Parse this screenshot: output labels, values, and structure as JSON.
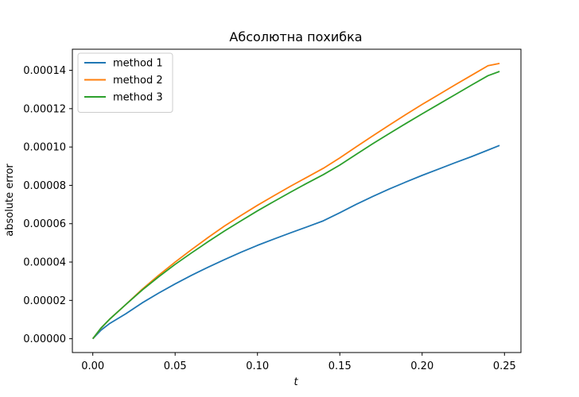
{
  "chart_data": {
    "type": "line",
    "title": "Абсолютна похибка",
    "xlabel": "t",
    "ylabel": "absolute error",
    "xlim": [
      -0.0124,
      0.26
    ],
    "ylim": [
      -7.2e-06,
      0.000151
    ],
    "xticks": [
      0.0,
      0.05,
      0.1,
      0.15,
      0.2,
      0.25
    ],
    "xtick_labels": [
      "0.00",
      "0.05",
      "0.10",
      "0.15",
      "0.20",
      "0.25"
    ],
    "yticks": [
      0,
      2e-05,
      4e-05,
      6e-05,
      8e-05,
      0.0001,
      0.00012,
      0.00014
    ],
    "ytick_labels": [
      "0.00000",
      "0.00002",
      "0.00004",
      "0.00006",
      "0.00008",
      "0.00010",
      "0.00012",
      "0.00014"
    ],
    "grid": false,
    "legend_position": "upper-left",
    "x": [
      0.0,
      0.005,
      0.01,
      0.02,
      0.03,
      0.04,
      0.05,
      0.06,
      0.07,
      0.08,
      0.09,
      0.1,
      0.11,
      0.12,
      0.13,
      0.14,
      0.15,
      0.16,
      0.17,
      0.18,
      0.19,
      0.2,
      0.21,
      0.22,
      0.23,
      0.24,
      0.247
    ],
    "series": [
      {
        "name": "method 1",
        "color": "#1f77b4",
        "values": [
          0.0,
          4.5e-06,
          7.8e-06,
          1.3e-05,
          1.87e-05,
          2.38e-05,
          2.86e-05,
          3.31e-05,
          3.73e-05,
          4.13e-05,
          4.51e-05,
          4.87e-05,
          5.2e-05,
          5.52e-05,
          5.83e-05,
          6.15e-05,
          6.57e-05,
          7.01e-05,
          7.42e-05,
          7.81e-05,
          8.17e-05,
          8.52e-05,
          8.85e-05,
          9.18e-05,
          9.5e-05,
          9.84e-05,
          0.0001008
        ]
      },
      {
        "name": "method 2",
        "color": "#ff7f0e",
        "values": [
          0.0,
          5.5e-06,
          1e-05,
          1.78e-05,
          2.58e-05,
          3.31e-05,
          4e-05,
          4.65e-05,
          5.28e-05,
          5.88e-05,
          6.43e-05,
          6.96e-05,
          7.46e-05,
          7.95e-05,
          8.42e-05,
          8.89e-05,
          9.43e-05,
          0.0001001,
          0.0001058,
          0.0001114,
          0.0001169,
          0.0001222,
          0.0001273,
          0.0001324,
          0.0001374,
          0.0001424,
          0.0001436
        ]
      },
      {
        "name": "method 3",
        "color": "#2ca02c",
        "values": [
          0.0,
          5.6e-06,
          1e-05,
          1.78e-05,
          2.54e-05,
          3.23e-05,
          3.88e-05,
          4.48e-05,
          5.06e-05,
          5.62e-05,
          6.15e-05,
          6.67e-05,
          7.16e-05,
          7.64e-05,
          8.11e-05,
          8.56e-05,
          9.06e-05,
          9.62e-05,
          0.0001017,
          0.000107,
          0.0001122,
          0.0001173,
          0.0001223,
          0.0001273,
          0.0001323,
          0.0001372,
          0.0001394
        ]
      }
    ]
  }
}
